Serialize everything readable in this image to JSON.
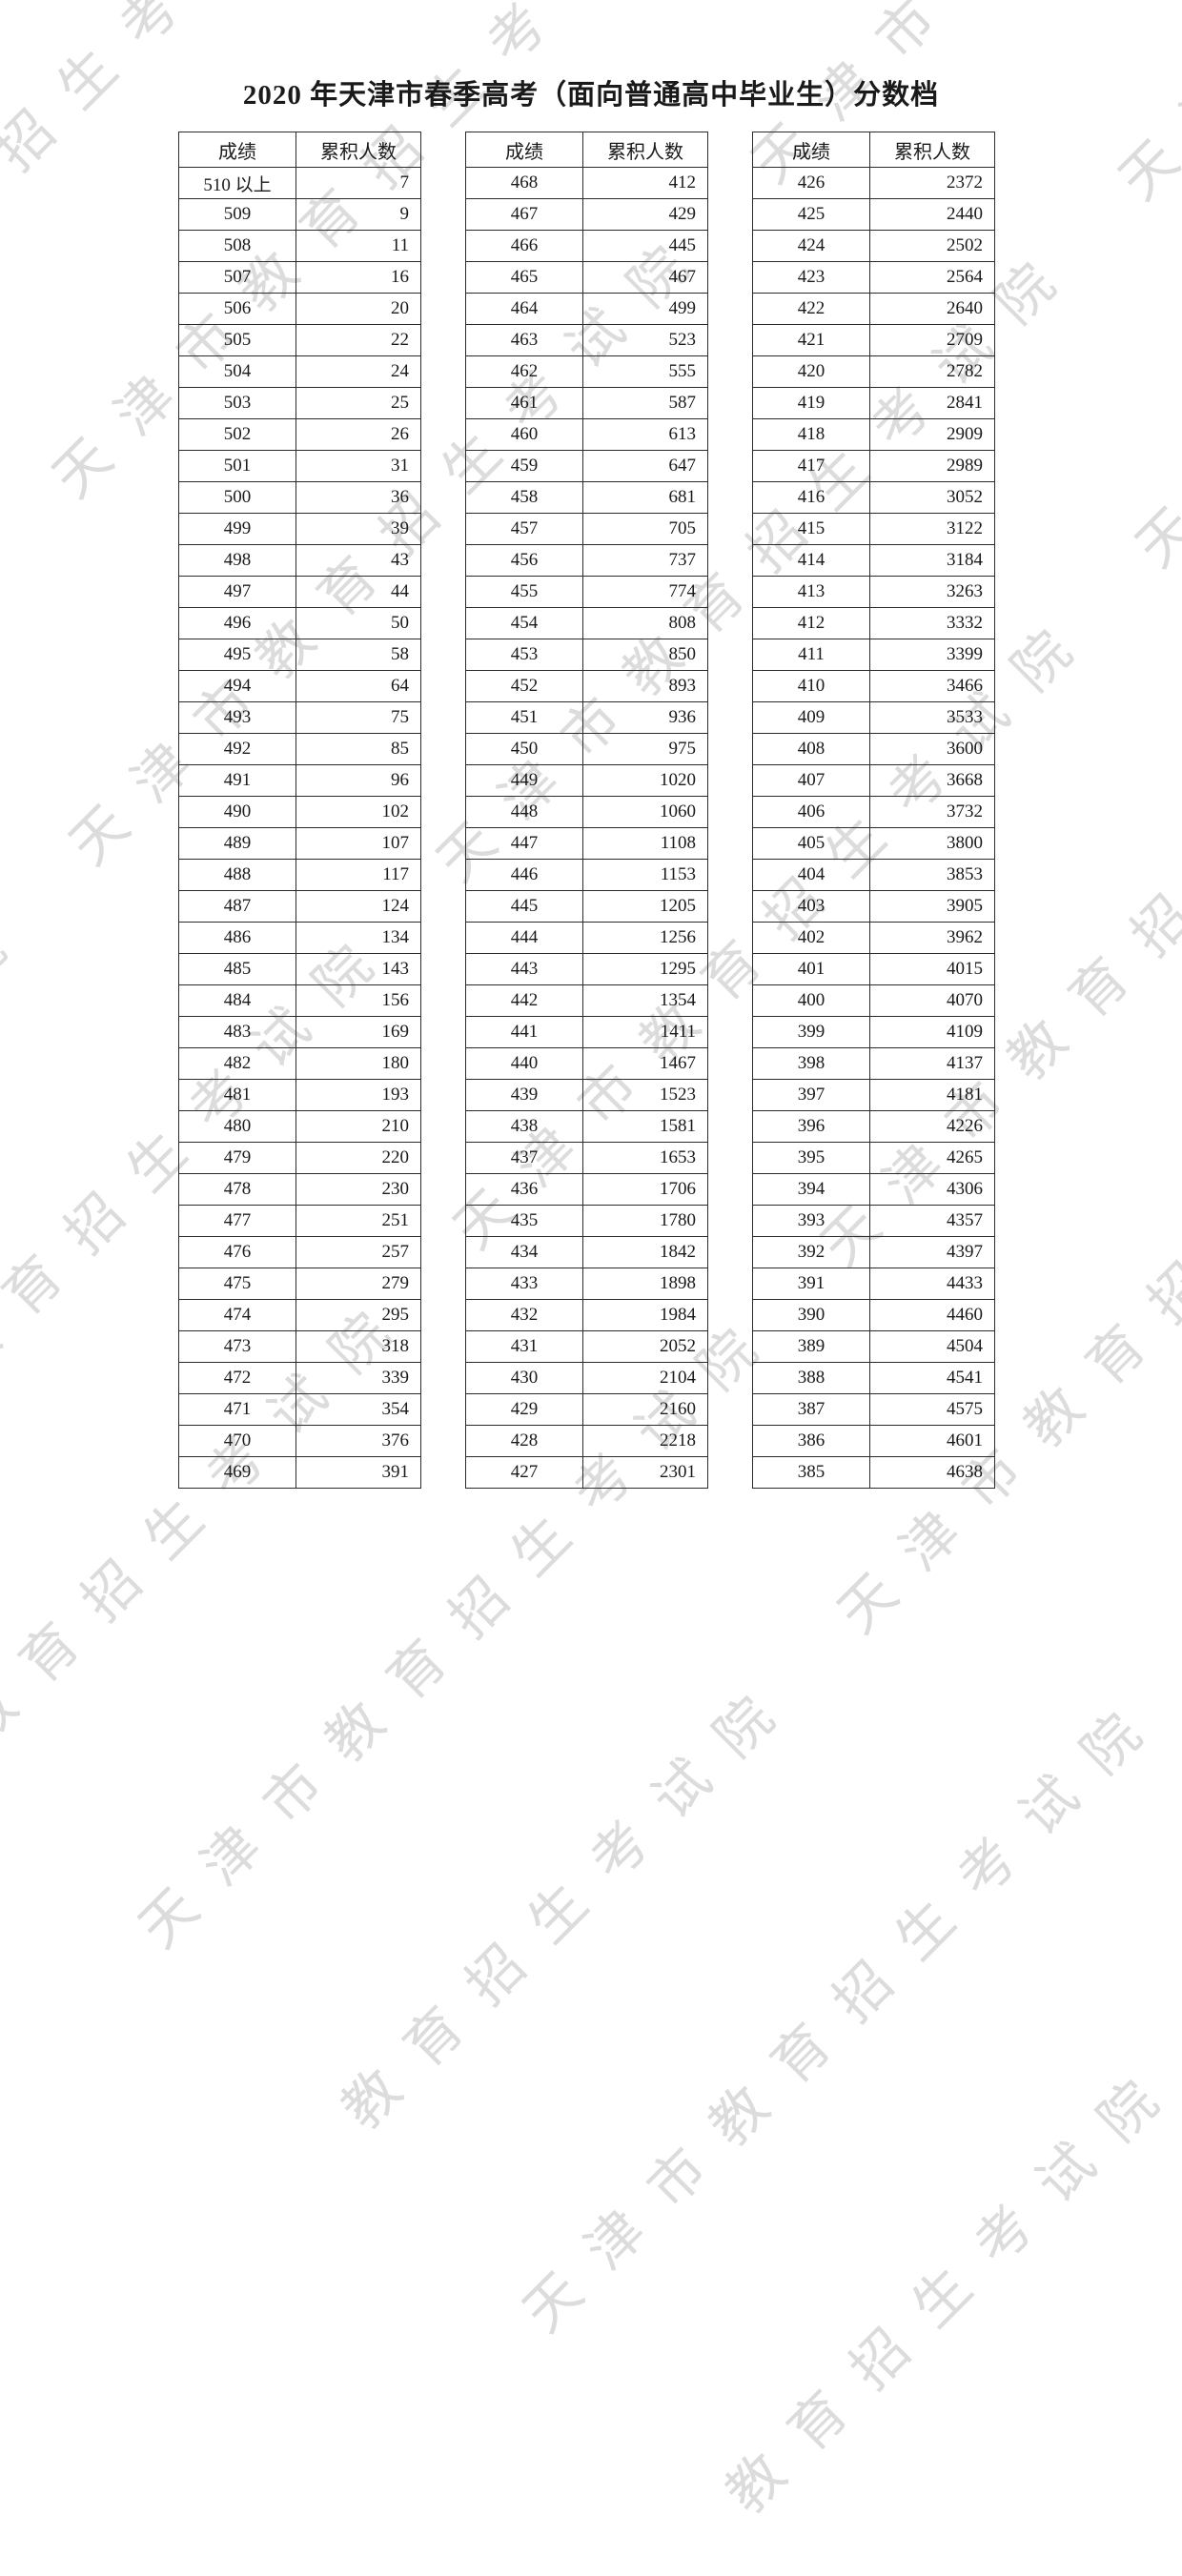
{
  "page": {
    "title": "2020 年天津市春季高考（面向普通高中毕业生）分数档",
    "watermark_text": "天津市教育招生考试院",
    "watermark_color": "#dcdcdc"
  },
  "table_headers": {
    "score": "成绩",
    "count": "累积人数"
  },
  "tables": [
    {
      "name": "score-table-1",
      "rows": [
        [
          "510 以上",
          "7"
        ],
        [
          "509",
          "9"
        ],
        [
          "508",
          "11"
        ],
        [
          "507",
          "16"
        ],
        [
          "506",
          "20"
        ],
        [
          "505",
          "22"
        ],
        [
          "504",
          "24"
        ],
        [
          "503",
          "25"
        ],
        [
          "502",
          "26"
        ],
        [
          "501",
          "31"
        ],
        [
          "500",
          "36"
        ],
        [
          "499",
          "39"
        ],
        [
          "498",
          "43"
        ],
        [
          "497",
          "44"
        ],
        [
          "496",
          "50"
        ],
        [
          "495",
          "58"
        ],
        [
          "494",
          "64"
        ],
        [
          "493",
          "75"
        ],
        [
          "492",
          "85"
        ],
        [
          "491",
          "96"
        ],
        [
          "490",
          "102"
        ],
        [
          "489",
          "107"
        ],
        [
          "488",
          "117"
        ],
        [
          "487",
          "124"
        ],
        [
          "486",
          "134"
        ],
        [
          "485",
          "143"
        ],
        [
          "484",
          "156"
        ],
        [
          "483",
          "169"
        ],
        [
          "482",
          "180"
        ],
        [
          "481",
          "193"
        ],
        [
          "480",
          "210"
        ],
        [
          "479",
          "220"
        ],
        [
          "478",
          "230"
        ],
        [
          "477",
          "251"
        ],
        [
          "476",
          "257"
        ],
        [
          "475",
          "279"
        ],
        [
          "474",
          "295"
        ],
        [
          "473",
          "318"
        ],
        [
          "472",
          "339"
        ],
        [
          "471",
          "354"
        ],
        [
          "470",
          "376"
        ],
        [
          "469",
          "391"
        ]
      ]
    },
    {
      "name": "score-table-2",
      "rows": [
        [
          "468",
          "412"
        ],
        [
          "467",
          "429"
        ],
        [
          "466",
          "445"
        ],
        [
          "465",
          "467"
        ],
        [
          "464",
          "499"
        ],
        [
          "463",
          "523"
        ],
        [
          "462",
          "555"
        ],
        [
          "461",
          "587"
        ],
        [
          "460",
          "613"
        ],
        [
          "459",
          "647"
        ],
        [
          "458",
          "681"
        ],
        [
          "457",
          "705"
        ],
        [
          "456",
          "737"
        ],
        [
          "455",
          "774"
        ],
        [
          "454",
          "808"
        ],
        [
          "453",
          "850"
        ],
        [
          "452",
          "893"
        ],
        [
          "451",
          "936"
        ],
        [
          "450",
          "975"
        ],
        [
          "449",
          "1020"
        ],
        [
          "448",
          "1060"
        ],
        [
          "447",
          "1108"
        ],
        [
          "446",
          "1153"
        ],
        [
          "445",
          "1205"
        ],
        [
          "444",
          "1256"
        ],
        [
          "443",
          "1295"
        ],
        [
          "442",
          "1354"
        ],
        [
          "441",
          "1411"
        ],
        [
          "440",
          "1467"
        ],
        [
          "439",
          "1523"
        ],
        [
          "438",
          "1581"
        ],
        [
          "437",
          "1653"
        ],
        [
          "436",
          "1706"
        ],
        [
          "435",
          "1780"
        ],
        [
          "434",
          "1842"
        ],
        [
          "433",
          "1898"
        ],
        [
          "432",
          "1984"
        ],
        [
          "431",
          "2052"
        ],
        [
          "430",
          "2104"
        ],
        [
          "429",
          "2160"
        ],
        [
          "428",
          "2218"
        ],
        [
          "427",
          "2301"
        ]
      ]
    },
    {
      "name": "score-table-3",
      "rows": [
        [
          "426",
          "2372"
        ],
        [
          "425",
          "2440"
        ],
        [
          "424",
          "2502"
        ],
        [
          "423",
          "2564"
        ],
        [
          "422",
          "2640"
        ],
        [
          "421",
          "2709"
        ],
        [
          "420",
          "2782"
        ],
        [
          "419",
          "2841"
        ],
        [
          "418",
          "2909"
        ],
        [
          "417",
          "2989"
        ],
        [
          "416",
          "3052"
        ],
        [
          "415",
          "3122"
        ],
        [
          "414",
          "3184"
        ],
        [
          "413",
          "3263"
        ],
        [
          "412",
          "3332"
        ],
        [
          "411",
          "3399"
        ],
        [
          "410",
          "3466"
        ],
        [
          "409",
          "3533"
        ],
        [
          "408",
          "3600"
        ],
        [
          "407",
          "3668"
        ],
        [
          "406",
          "3732"
        ],
        [
          "405",
          "3800"
        ],
        [
          "404",
          "3853"
        ],
        [
          "403",
          "3905"
        ],
        [
          "402",
          "3962"
        ],
        [
          "401",
          "4015"
        ],
        [
          "400",
          "4070"
        ],
        [
          "399",
          "4109"
        ],
        [
          "398",
          "4137"
        ],
        [
          "397",
          "4181"
        ],
        [
          "396",
          "4226"
        ],
        [
          "395",
          "4265"
        ],
        [
          "394",
          "4306"
        ],
        [
          "393",
          "4357"
        ],
        [
          "392",
          "4397"
        ],
        [
          "391",
          "4433"
        ],
        [
          "390",
          "4460"
        ],
        [
          "389",
          "4504"
        ],
        [
          "388",
          "4541"
        ],
        [
          "387",
          "4575"
        ],
        [
          "386",
          "4601"
        ],
        [
          "385",
          "4638"
        ]
      ]
    }
  ]
}
